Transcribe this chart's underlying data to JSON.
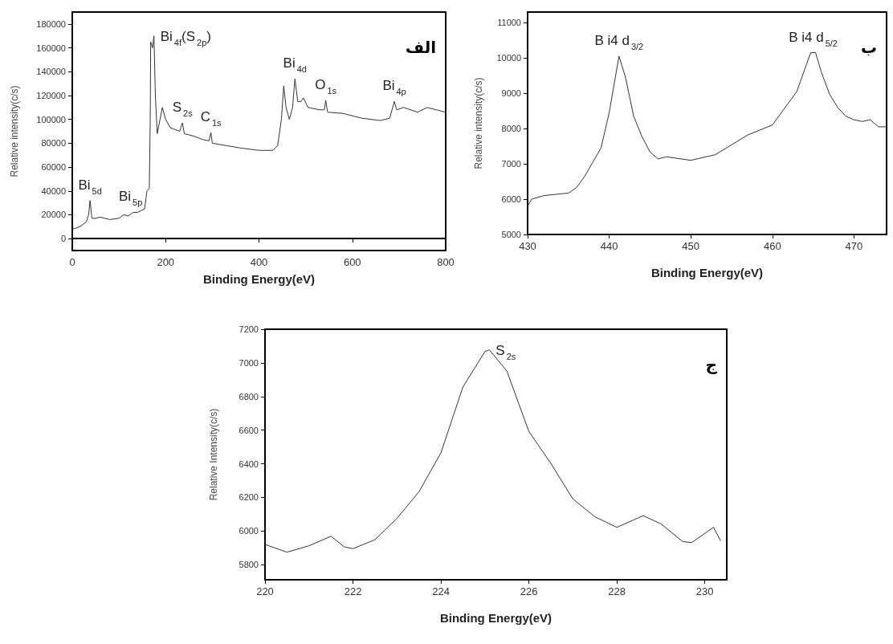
{
  "chart_data": [
    {
      "type": "line",
      "title": "الف",
      "xlabel": "Binding Energy(eV)",
      "ylabel": "Relative intensity(c/s)",
      "color": "#333333",
      "x": [
        0,
        10,
        20,
        30,
        35,
        38,
        42,
        50,
        60,
        80,
        100,
        110,
        120,
        130,
        140,
        155,
        160,
        165,
        167,
        168,
        172,
        175,
        178,
        182,
        188,
        193,
        200,
        210,
        230,
        236,
        240,
        260,
        280,
        293,
        297,
        300,
        330,
        360,
        400,
        430,
        440,
        448,
        453,
        458,
        465,
        472,
        477,
        483,
        490,
        495,
        505,
        530,
        540,
        543,
        547,
        580,
        620,
        660,
        680,
        690,
        695,
        710,
        740,
        760,
        780,
        800
      ],
      "values": [
        8000,
        9000,
        11000,
        14000,
        20000,
        32000,
        17000,
        17000,
        18000,
        16000,
        17000,
        20000,
        19000,
        22000,
        22000,
        25000,
        40000,
        42000,
        100000,
        165000,
        160000,
        170000,
        120000,
        88000,
        100000,
        110000,
        100000,
        93000,
        90000,
        97000,
        88000,
        86000,
        83000,
        82000,
        89000,
        80000,
        78000,
        76000,
        74000,
        74000,
        78000,
        100000,
        128000,
        110000,
        100000,
        110000,
        134000,
        115000,
        115000,
        118000,
        110000,
        108000,
        108000,
        116000,
        106000,
        105000,
        101000,
        99000,
        101000,
        115000,
        108000,
        110000,
        106000,
        110000,
        108000,
        106000
      ],
      "xlim": [
        0,
        800
      ],
      "ylim": [
        -10000,
        190000
      ],
      "xticks": [
        0,
        200,
        400,
        600,
        800
      ],
      "yticks": [
        0,
        20000,
        40000,
        60000,
        80000,
        100000,
        120000,
        140000,
        160000,
        180000
      ],
      "annotations": [
        {
          "text": "Bi$_{5d}$",
          "x": 38,
          "y": 32000
        },
        {
          "text": "Bi$_{5p}$",
          "x": 125,
          "y": 22000
        },
        {
          "text": "Bi$_{4f}$(S$_{2p}$)",
          "x": 175,
          "y": 170000
        },
        {
          "text": "S$_{2s}$",
          "x": 236,
          "y": 97000
        },
        {
          "text": "C$_{1s}$",
          "x": 297,
          "y": 89000
        },
        {
          "text": "Bi$_{4d}$",
          "x": 477,
          "y": 134000
        },
        {
          "text": "O$_{1s}$",
          "x": 543,
          "y": 116000
        },
        {
          "text": "Bi$_{4p}$",
          "x": 690,
          "y": 115000
        }
      ]
    },
    {
      "type": "line",
      "title": "ب",
      "xlabel": "Binding Energy(eV)",
      "ylabel": "Relative intensity(c/s)",
      "color": "#333333",
      "x": [
        430,
        430.5,
        432,
        434,
        435,
        436,
        437,
        438,
        439,
        440,
        441.2,
        442,
        443,
        444,
        445,
        446,
        447,
        450,
        453,
        455,
        457,
        460,
        463,
        464,
        464.7,
        465.3,
        466,
        467,
        468,
        469,
        470,
        471,
        472,
        473,
        474
      ],
      "values": [
        5800,
        6000,
        6100,
        6150,
        6170,
        6330,
        6650,
        7050,
        7450,
        8450,
        10050,
        9450,
        8350,
        7780,
        7340,
        7140,
        7200,
        7100,
        7260,
        7540,
        7820,
        8100,
        9050,
        9700,
        10150,
        10150,
        9600,
        8980,
        8600,
        8350,
        8250,
        8200,
        8250,
        8050,
        8050
      ],
      "xlim": [
        430,
        474
      ],
      "ylim": [
        5000,
        11300
      ],
      "xticks": [
        430,
        440,
        450,
        460,
        470
      ],
      "yticks": [
        5000,
        6000,
        7000,
        8000,
        9000,
        10000,
        11000
      ],
      "annotations": [
        {
          "text": "B i4 d$_{3/2}$",
          "x": 441.2,
          "y": 10050
        },
        {
          "text": "B i4 d$_{5/2}$",
          "x": 465,
          "y": 10150
        }
      ]
    },
    {
      "type": "line",
      "title": "ج",
      "xlabel": "Binding Energy(eV)",
      "ylabel": "Relative Intensity(c/s)",
      "color": "#333333",
      "x": [
        220,
        220.5,
        221,
        221.5,
        221.8,
        222,
        222.5,
        223,
        223.5,
        224,
        224.5,
        225,
        225.1,
        225.5,
        226,
        226.5,
        227,
        227.5,
        228,
        228.6,
        229,
        229.5,
        229.7,
        230.2,
        230.36
      ],
      "values": [
        5920,
        5874,
        5912,
        5969,
        5906,
        5895,
        5948,
        6075,
        6233,
        6465,
        6856,
        7067,
        7078,
        6951,
        6592,
        6402,
        6191,
        6085,
        6022,
        6091,
        6043,
        5937,
        5931,
        6022,
        5941
      ],
      "xlim": [
        220,
        230.5
      ],
      "ylim": [
        5710,
        7200
      ],
      "xticks": [
        220,
        222,
        224,
        226,
        228,
        230
      ],
      "yticks": [
        5800,
        6000,
        6200,
        6400,
        6600,
        6800,
        7000,
        7200
      ],
      "annotations": [
        {
          "text": "S$_{2s}$",
          "x": 225.1,
          "y": 7078
        }
      ]
    }
  ]
}
